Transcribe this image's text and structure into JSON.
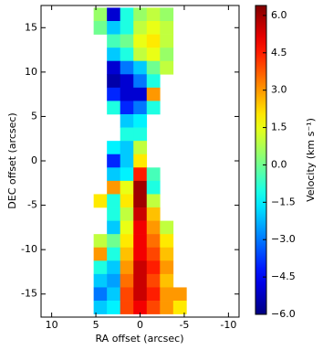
{
  "chart_data": {
    "type": "heatmap",
    "colormap": "jet",
    "xlabel": "RA offset (arcsec)",
    "ylabel": "DEC offset (arcsec)",
    "colorbar_label": "Velocity (km s⁻¹)",
    "xlim": [
      11.2,
      -11.2
    ],
    "ylim": [
      -17.6,
      17.5
    ],
    "xticks": [
      10,
      5,
      0,
      -5,
      -10
    ],
    "yticks": [
      -15,
      -10,
      -5,
      0,
      5,
      10,
      15
    ],
    "clim": [
      -6.0,
      6.4
    ],
    "cticks": [
      {
        "value": -6,
        "label": "−6.0"
      },
      {
        "value": -4.5,
        "label": "−4.5"
      },
      {
        "value": -3,
        "label": "−3.0"
      },
      {
        "value": -1.5,
        "label": "−1.5"
      },
      {
        "value": 0,
        "label": "0.0"
      },
      {
        "value": 1.5,
        "label": "1.5"
      },
      {
        "value": 3,
        "label": "3.0"
      },
      {
        "value": 4.5,
        "label": "4.5"
      },
      {
        "value": 6,
        "label": "6.0"
      }
    ],
    "x": [
      4.5,
      3,
      1.5,
      0,
      -1.5,
      -3,
      -4.5
    ],
    "y": [
      16.5,
      15,
      13.5,
      12,
      10.5,
      9,
      7.5,
      6,
      4.5,
      3,
      1.5,
      0,
      -1.5,
      -3,
      -4.5,
      -6,
      -7.5,
      -9,
      -10.5,
      -12,
      -13.5,
      -15,
      -16.5
    ],
    "values": [
      [
        0.5,
        -5,
        -1,
        0.5,
        1,
        0.5,
        null
      ],
      [
        0,
        -2,
        -1,
        1,
        1.5,
        1,
        null
      ],
      [
        null,
        -0.5,
        0,
        1.5,
        2,
        1,
        null
      ],
      [
        null,
        -2,
        -1,
        1,
        1.5,
        0.5,
        null
      ],
      [
        null,
        -5,
        -3,
        -2,
        0,
        1,
        null
      ],
      [
        null,
        -5.5,
        -5,
        -3,
        -1,
        null,
        null
      ],
      [
        null,
        -4,
        -5,
        -5,
        3,
        null,
        null
      ],
      [
        null,
        -1,
        -4,
        -3,
        -1,
        null,
        null
      ],
      [
        null,
        null,
        -2,
        -1.5,
        null,
        null,
        null
      ],
      [
        null,
        null,
        -1,
        -1,
        null,
        null,
        null
      ],
      [
        null,
        -1.5,
        -2,
        1,
        null,
        null,
        null
      ],
      [
        null,
        -4,
        -2,
        2,
        null,
        null,
        null
      ],
      [
        null,
        -2,
        -1.5,
        4.5,
        -0.5,
        null,
        null
      ],
      [
        null,
        3,
        1.5,
        6,
        -1,
        null,
        null
      ],
      [
        2,
        -1,
        2,
        6,
        1,
        null,
        null
      ],
      [
        null,
        -1,
        1,
        5.5,
        2.5,
        null,
        null
      ],
      [
        null,
        -2,
        1.5,
        5,
        3,
        1,
        null
      ],
      [
        1,
        0,
        2,
        5,
        3.5,
        2,
        null
      ],
      [
        3,
        -1,
        2.5,
        5,
        4,
        2.5,
        null
      ],
      [
        -1,
        -2,
        3,
        5.5,
        4.5,
        3,
        null
      ],
      [
        -2,
        -2.5,
        3.5,
        5.5,
        4,
        2.5,
        null
      ],
      [
        -3,
        -2,
        4,
        5.5,
        4.5,
        3,
        3
      ],
      [
        -2,
        -1.5,
        4,
        5,
        4,
        3,
        2
      ]
    ]
  }
}
